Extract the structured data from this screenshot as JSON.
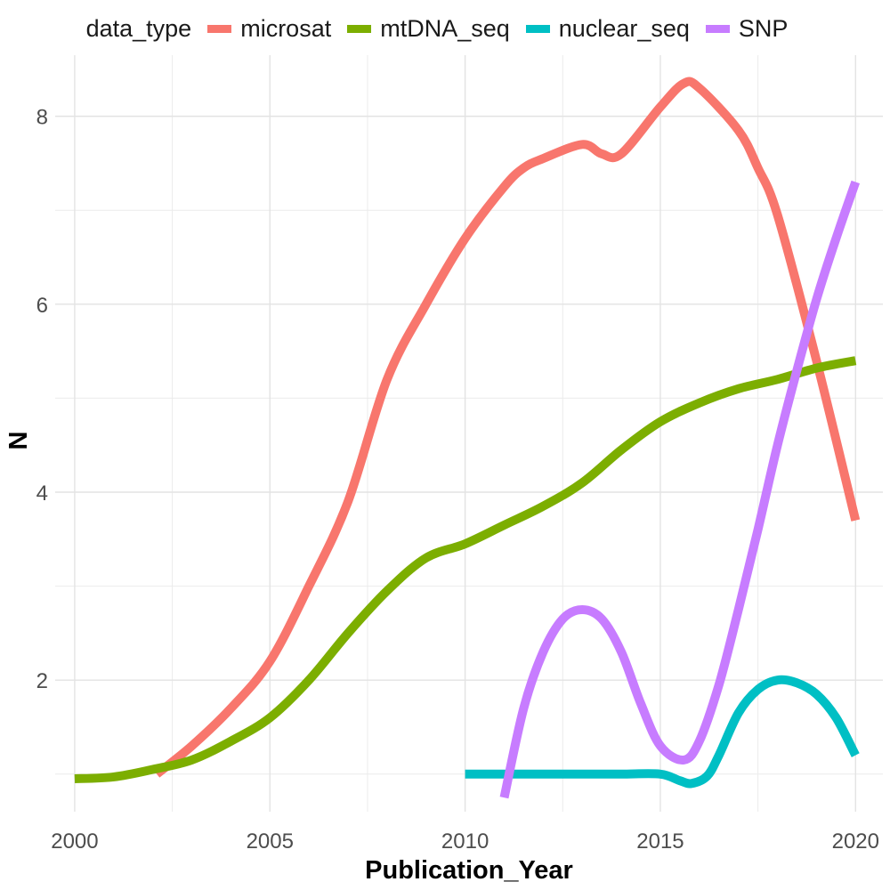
{
  "chart_data": {
    "type": "line",
    "xlabel": "Publication_Year",
    "ylabel": "N",
    "xlim": [
      1999.5,
      2020.7
    ],
    "ylim": [
      0.6,
      8.65
    ],
    "x_ticks": [
      2000,
      2005,
      2010,
      2015,
      2020
    ],
    "x_tick_labels": [
      "2000",
      "2005",
      "2010",
      "2015",
      "2020"
    ],
    "y_ticks": [
      2,
      4,
      6,
      8
    ],
    "y_tick_labels": [
      "2",
      "4",
      "6",
      "8"
    ],
    "grid": true,
    "legend_position": "top",
    "legend_title": "data_type",
    "series": [
      {
        "name": "microsat",
        "color": "#F8766D",
        "x": [
          2002.1,
          2003,
          2004,
          2005,
          2006,
          2007,
          2008,
          2009,
          2010,
          2011,
          2011.5,
          2012,
          2013,
          2013.5,
          2014,
          2015,
          2015.6,
          2016,
          2017,
          2017.5,
          2018,
          2019,
          2020
        ],
        "y": [
          1.0,
          1.3,
          1.7,
          2.2,
          3.0,
          3.9,
          5.2,
          6.0,
          6.7,
          7.25,
          7.45,
          7.55,
          7.7,
          7.6,
          7.6,
          8.1,
          8.35,
          8.3,
          7.85,
          7.45,
          6.95,
          5.4,
          3.7
        ]
      },
      {
        "name": "mtDNA_seq",
        "color": "#7CAE00",
        "x": [
          2000,
          2001,
          2002,
          2003,
          2004,
          2005,
          2006,
          2007,
          2008,
          2009,
          2010,
          2011,
          2012,
          2013,
          2014,
          2015,
          2016,
          2017,
          2018,
          2019,
          2020
        ],
        "y": [
          0.95,
          0.97,
          1.05,
          1.15,
          1.35,
          1.6,
          2.0,
          2.5,
          2.95,
          3.3,
          3.45,
          3.65,
          3.85,
          4.1,
          4.45,
          4.75,
          4.95,
          5.1,
          5.2,
          5.32,
          5.4
        ]
      },
      {
        "name": "nuclear_seq",
        "color": "#00BFC4",
        "x": [
          2010,
          2011,
          2012,
          2013,
          2014,
          2015,
          2015.5,
          2015.8,
          2016.2,
          2016.5,
          2017,
          2017.5,
          2018,
          2018.5,
          2019,
          2019.5,
          2020
        ],
        "y": [
          1.0,
          1.0,
          1.0,
          1.0,
          1.0,
          1.0,
          0.93,
          0.9,
          0.98,
          1.2,
          1.65,
          1.9,
          2.0,
          1.97,
          1.85,
          1.6,
          1.2
        ]
      },
      {
        "name": "SNP",
        "color": "#C77CFF",
        "x": [
          2011,
          2011.5,
          2012,
          2012.5,
          2013,
          2013.5,
          2014,
          2014.5,
          2015,
          2015.6,
          2016,
          2016.5,
          2017,
          2017.5,
          2018,
          2018.5,
          2019,
          2019.5,
          2020
        ],
        "y": [
          0.75,
          1.7,
          2.3,
          2.65,
          2.75,
          2.65,
          2.3,
          1.75,
          1.3,
          1.15,
          1.35,
          1.95,
          2.75,
          3.6,
          4.5,
          5.3,
          6.05,
          6.7,
          7.3
        ]
      }
    ]
  }
}
